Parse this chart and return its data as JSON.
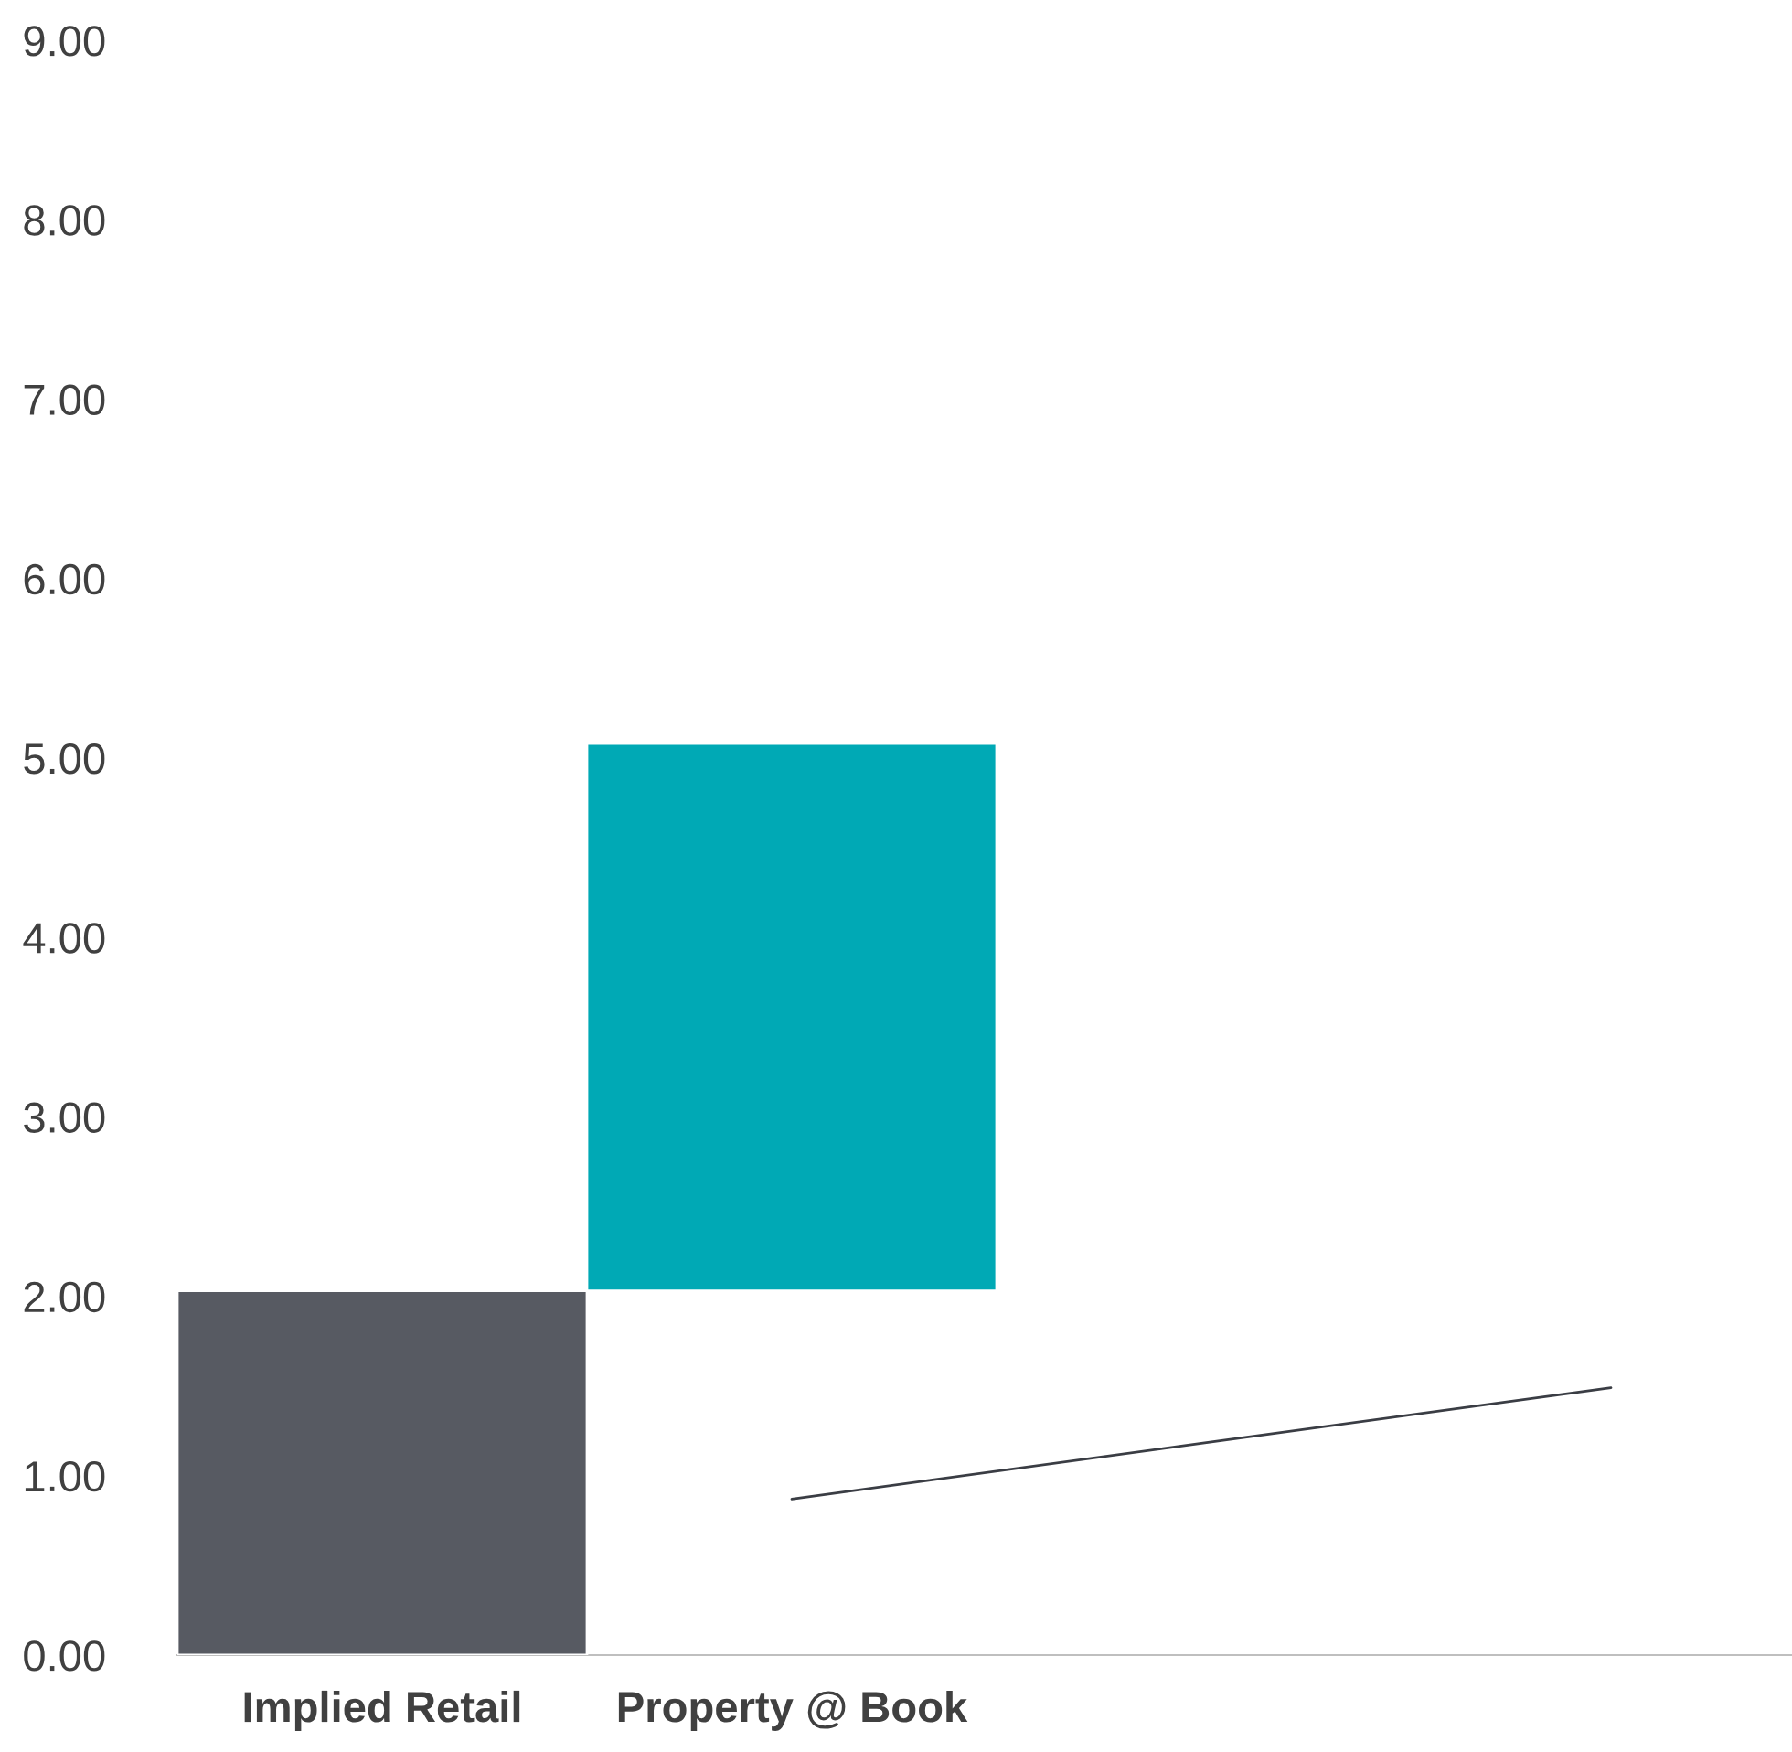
{
  "chart_data": {
    "type": "bar",
    "categories": [
      "Implied Retail",
      "Property @ Book",
      null,
      null
    ],
    "series": [
      {
        "colors": [
          "#575a62",
          "#00a9b5",
          null,
          null
        ],
        "values": [
          2.03,
          3.05,
          null,
          null
        ],
        "base": [
          0,
          2.03,
          null,
          null
        ]
      },
      {
        "type": "line",
        "color": "#3a3d44",
        "values": [
          null,
          0.87,
          1.18,
          1.49
        ]
      }
    ],
    "ylim": [
      0,
      9
    ],
    "yticks": [
      {
        "value": 0,
        "label": "0.00"
      },
      {
        "value": 1,
        "label": "1.00"
      },
      {
        "value": 2,
        "label": "2.00"
      },
      {
        "value": 3,
        "label": "3.00"
      },
      {
        "value": 4,
        "label": "4.00"
      },
      {
        "value": 5,
        "label": "5.00"
      },
      {
        "value": 6,
        "label": "6.00"
      },
      {
        "value": 7,
        "label": "7.00"
      },
      {
        "value": 8,
        "label": "8.00"
      },
      {
        "value": 9,
        "label": "9.00"
      }
    ],
    "grid": false,
    "legend": false
  }
}
